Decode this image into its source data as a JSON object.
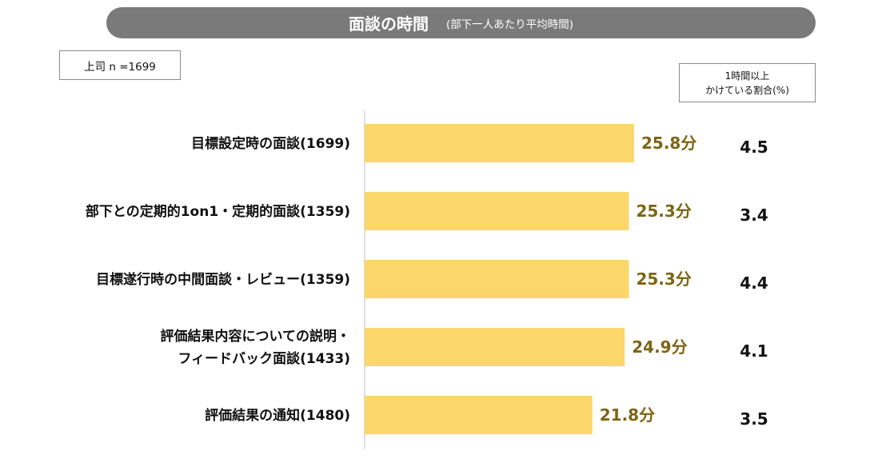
{
  "header": {
    "title": "面談の時間",
    "subtitle": "(部下一人あたり平均時間)"
  },
  "respondent_box": "上司 n =1699",
  "ratio_header": {
    "line1": "1時間以上",
    "line2": "かけている割合(%)"
  },
  "colors": {
    "bar": "#fbd66a",
    "value_text": "#7d6514",
    "title_bar": "#7a7a7a"
  },
  "chart_data": {
    "type": "bar",
    "orientation": "horizontal",
    "categories": [
      [
        "目標設定時の面談(1699)"
      ],
      [
        "部下との定期的1on1・定期的面談(1359)"
      ],
      [
        "目標遂行時の中間面談・レビュー(1359)"
      ],
      [
        "評価結果内容についての説明・",
        "フィードバック面談(1433)"
      ],
      [
        "評価結果の通知(1480)"
      ]
    ],
    "values": [
      25.8,
      25.3,
      25.3,
      24.9,
      21.8
    ],
    "value_labels": [
      "25.8分",
      "25.3分",
      "25.3分",
      "24.9分",
      "21.8分"
    ],
    "ratios": [
      "4.5",
      "3.4",
      "4.4",
      "4.1",
      "3.5"
    ],
    "unit": "分",
    "xlim": [
      0,
      35
    ]
  }
}
